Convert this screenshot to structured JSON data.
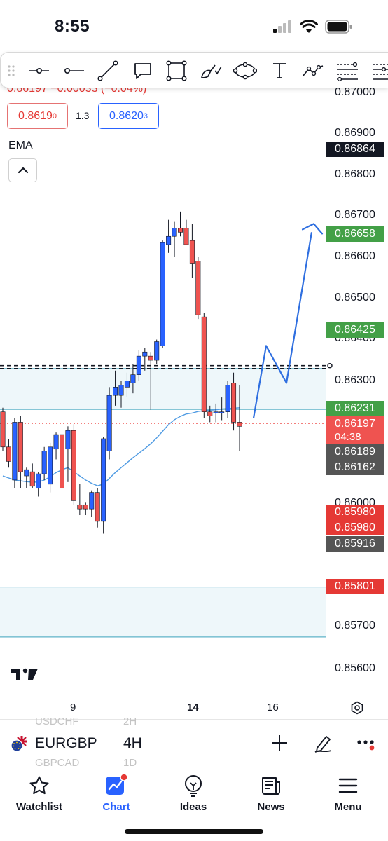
{
  "status_bar": {
    "time": "8:55"
  },
  "toolbar": {
    "tools": [
      "drag-handle-icon",
      "horizontal-ray-icon",
      "horizontal-line-icon",
      "trend-line-icon",
      "callout-icon",
      "rectangle-icon",
      "brush-icon",
      "ellipse-icon",
      "text-tool-icon",
      "path-icon",
      "fib-retracement-icon",
      "fib-extension-icon"
    ]
  },
  "chart": {
    "ohlc_text": "0.86197 −0.00033 (−0.04%)",
    "bid": {
      "main": "0.8619",
      "sup": "0"
    },
    "ask": {
      "main": "0.8620",
      "sup": "3"
    },
    "spread": "1.3",
    "indicator": "EMA",
    "axis_labels": [
      "0.87000",
      "0.86900",
      "0.86800",
      "0.86700",
      "0.86600",
      "0.86500",
      "0.86400",
      "0.86300",
      "0.86000",
      "0.85700",
      "0.85600"
    ],
    "price_tags": [
      {
        "value": "0.86864",
        "color": "#131722"
      },
      {
        "value": "0.86658",
        "color": "#43a047"
      },
      {
        "value": "0.86425",
        "color": "#43a047"
      },
      {
        "value": "0.86231",
        "color": "#43a047"
      },
      {
        "value": "0.86197",
        "color": "#ef5350",
        "countdown": "04:38"
      },
      {
        "value": "0.86189",
        "color": "#555555"
      },
      {
        "value": "0.86162",
        "color": "#555555"
      },
      {
        "value": "0.85980",
        "color": "#e53935"
      },
      {
        "value": "0.85980",
        "color": "#e53935"
      },
      {
        "value": "0.85916",
        "color": "#555555"
      },
      {
        "value": "0.85801",
        "color": "#e53935"
      }
    ],
    "colors": {
      "up": "#2962ff",
      "down": "#ef5350",
      "ema": "#4f9be3",
      "zone_fill": "#eef7fa",
      "zone_line": "#5fb3c8",
      "projection": "#2f6fe0"
    }
  },
  "chart_data": {
    "type": "candlestick",
    "ylim": [
      0.8555,
      0.8705
    ],
    "candles": [
      {
        "o": 0.86225,
        "h": 0.86235,
        "l": 0.8613,
        "c": 0.8614
      },
      {
        "o": 0.8614,
        "h": 0.8616,
        "l": 0.8609,
        "c": 0.86105
      },
      {
        "o": 0.8606,
        "h": 0.8621,
        "l": 0.8604,
        "c": 0.862
      },
      {
        "o": 0.862,
        "h": 0.86215,
        "l": 0.8604,
        "c": 0.8608
      },
      {
        "o": 0.8607,
        "h": 0.8609,
        "l": 0.8604,
        "c": 0.86085
      },
      {
        "o": 0.8608,
        "h": 0.861,
        "l": 0.8604,
        "c": 0.86045
      },
      {
        "o": 0.8604,
        "h": 0.8608,
        "l": 0.8602,
        "c": 0.86075
      },
      {
        "o": 0.86075,
        "h": 0.8614,
        "l": 0.8606,
        "c": 0.8613
      },
      {
        "o": 0.8605,
        "h": 0.8615,
        "l": 0.8603,
        "c": 0.8614
      },
      {
        "o": 0.86135,
        "h": 0.86175,
        "l": 0.8611,
        "c": 0.8617
      },
      {
        "o": 0.8617,
        "h": 0.8618,
        "l": 0.8604,
        "c": 0.8604
      },
      {
        "o": 0.86135,
        "h": 0.8619,
        "l": 0.86055,
        "c": 0.8618
      },
      {
        "o": 0.8618,
        "h": 0.86195,
        "l": 0.86,
        "c": 0.8601
      },
      {
        "o": 0.86,
        "h": 0.8605,
        "l": 0.85975,
        "c": 0.8599
      },
      {
        "o": 0.86,
        "h": 0.86005,
        "l": 0.85975,
        "c": 0.8599
      },
      {
        "o": 0.8599,
        "h": 0.86035,
        "l": 0.8597,
        "c": 0.8603
      },
      {
        "o": 0.8603,
        "h": 0.8604,
        "l": 0.85945,
        "c": 0.8596
      },
      {
        "o": 0.8596,
        "h": 0.86165,
        "l": 0.8593,
        "c": 0.8616
      },
      {
        "o": 0.8613,
        "h": 0.86285,
        "l": 0.8611,
        "c": 0.86265
      },
      {
        "o": 0.86265,
        "h": 0.86325,
        "l": 0.8624,
        "c": 0.86285
      },
      {
        "o": 0.86265,
        "h": 0.863,
        "l": 0.86235,
        "c": 0.8629
      },
      {
        "o": 0.86285,
        "h": 0.8632,
        "l": 0.8626,
        "c": 0.863
      },
      {
        "o": 0.86295,
        "h": 0.8634,
        "l": 0.8627,
        "c": 0.86315
      },
      {
        "o": 0.86315,
        "h": 0.86375,
        "l": 0.863,
        "c": 0.8636
      },
      {
        "o": 0.8636,
        "h": 0.8638,
        "l": 0.86325,
        "c": 0.8637
      },
      {
        "o": 0.8636,
        "h": 0.8637,
        "l": 0.8623,
        "c": 0.8635
      },
      {
        "o": 0.8635,
        "h": 0.864,
        "l": 0.8634,
        "c": 0.86395
      },
      {
        "o": 0.86385,
        "h": 0.8664,
        "l": 0.8638,
        "c": 0.86635
      },
      {
        "o": 0.8663,
        "h": 0.8669,
        "l": 0.8661,
        "c": 0.8665
      },
      {
        "o": 0.8665,
        "h": 0.86685,
        "l": 0.866,
        "c": 0.8667
      },
      {
        "o": 0.8667,
        "h": 0.8671,
        "l": 0.8665,
        "c": 0.8666
      },
      {
        "o": 0.8667,
        "h": 0.8669,
        "l": 0.8663,
        "c": 0.8663
      },
      {
        "o": 0.8664,
        "h": 0.8668,
        "l": 0.8655,
        "c": 0.86585
      },
      {
        "o": 0.8659,
        "h": 0.866,
        "l": 0.8645,
        "c": 0.8646
      },
      {
        "o": 0.86455,
        "h": 0.86465,
        "l": 0.8621,
        "c": 0.86225
      },
      {
        "o": 0.86225,
        "h": 0.8624,
        "l": 0.862,
        "c": 0.86215
      },
      {
        "o": 0.86225,
        "h": 0.86245,
        "l": 0.862,
        "c": 0.86225
      },
      {
        "o": 0.86225,
        "h": 0.8626,
        "l": 0.86205,
        "c": 0.86225
      },
      {
        "o": 0.86225,
        "h": 0.863,
        "l": 0.8621,
        "c": 0.8629
      },
      {
        "o": 0.86295,
        "h": 0.8632,
        "l": 0.8618,
        "c": 0.862
      },
      {
        "o": 0.862,
        "h": 0.8629,
        "l": 0.8613,
        "c": 0.8619
      }
    ],
    "ema": [
      0.8607,
      0.86065,
      0.8606,
      0.86058,
      0.86056,
      0.86055,
      0.86055,
      0.8606,
      0.86068,
      0.86078,
      0.86085,
      0.8609,
      0.8608,
      0.8607,
      0.8606,
      0.86052,
      0.86046,
      0.8605,
      0.86064,
      0.86078,
      0.8609,
      0.86102,
      0.86114,
      0.86125,
      0.86136,
      0.86148,
      0.86162,
      0.86178,
      0.86194,
      0.86206,
      0.86214,
      0.8622,
      0.86222,
      0.86226,
      0.86228,
      0.86229,
      0.8623,
      0.86232,
      0.86233,
      0.86234,
      0.86235
    ],
    "zones": [
      {
        "top": 0.8633,
        "bottom": 0.86231
      },
      {
        "top": 0.85801,
        "bottom": 0.8568
      }
    ],
    "dashed_levels": [
      0.86337,
      0.8633
    ],
    "current_price": 0.86197,
    "projection": [
      [
        0,
        0.8621
      ],
      [
        1,
        0.86385
      ],
      [
        2,
        0.86295
      ],
      [
        3,
        0.8666
      ]
    ],
    "x_ticks": [
      "9",
      "14",
      "16"
    ]
  },
  "symbol_bar": {
    "prev_symbol": "USDCHF",
    "symbol": "EURGBP",
    "next_symbol": "GBPCAD",
    "prev_tf": "2H",
    "timeframe": "4H",
    "next_tf": "1D"
  },
  "nav": {
    "items": [
      {
        "label": "Watchlist",
        "icon": "star-icon"
      },
      {
        "label": "Chart",
        "icon": "chart-icon"
      },
      {
        "label": "Ideas",
        "icon": "lightbulb-icon"
      },
      {
        "label": "News",
        "icon": "news-icon"
      },
      {
        "label": "Menu",
        "icon": "hamburger-icon"
      }
    ],
    "active": "Chart"
  }
}
